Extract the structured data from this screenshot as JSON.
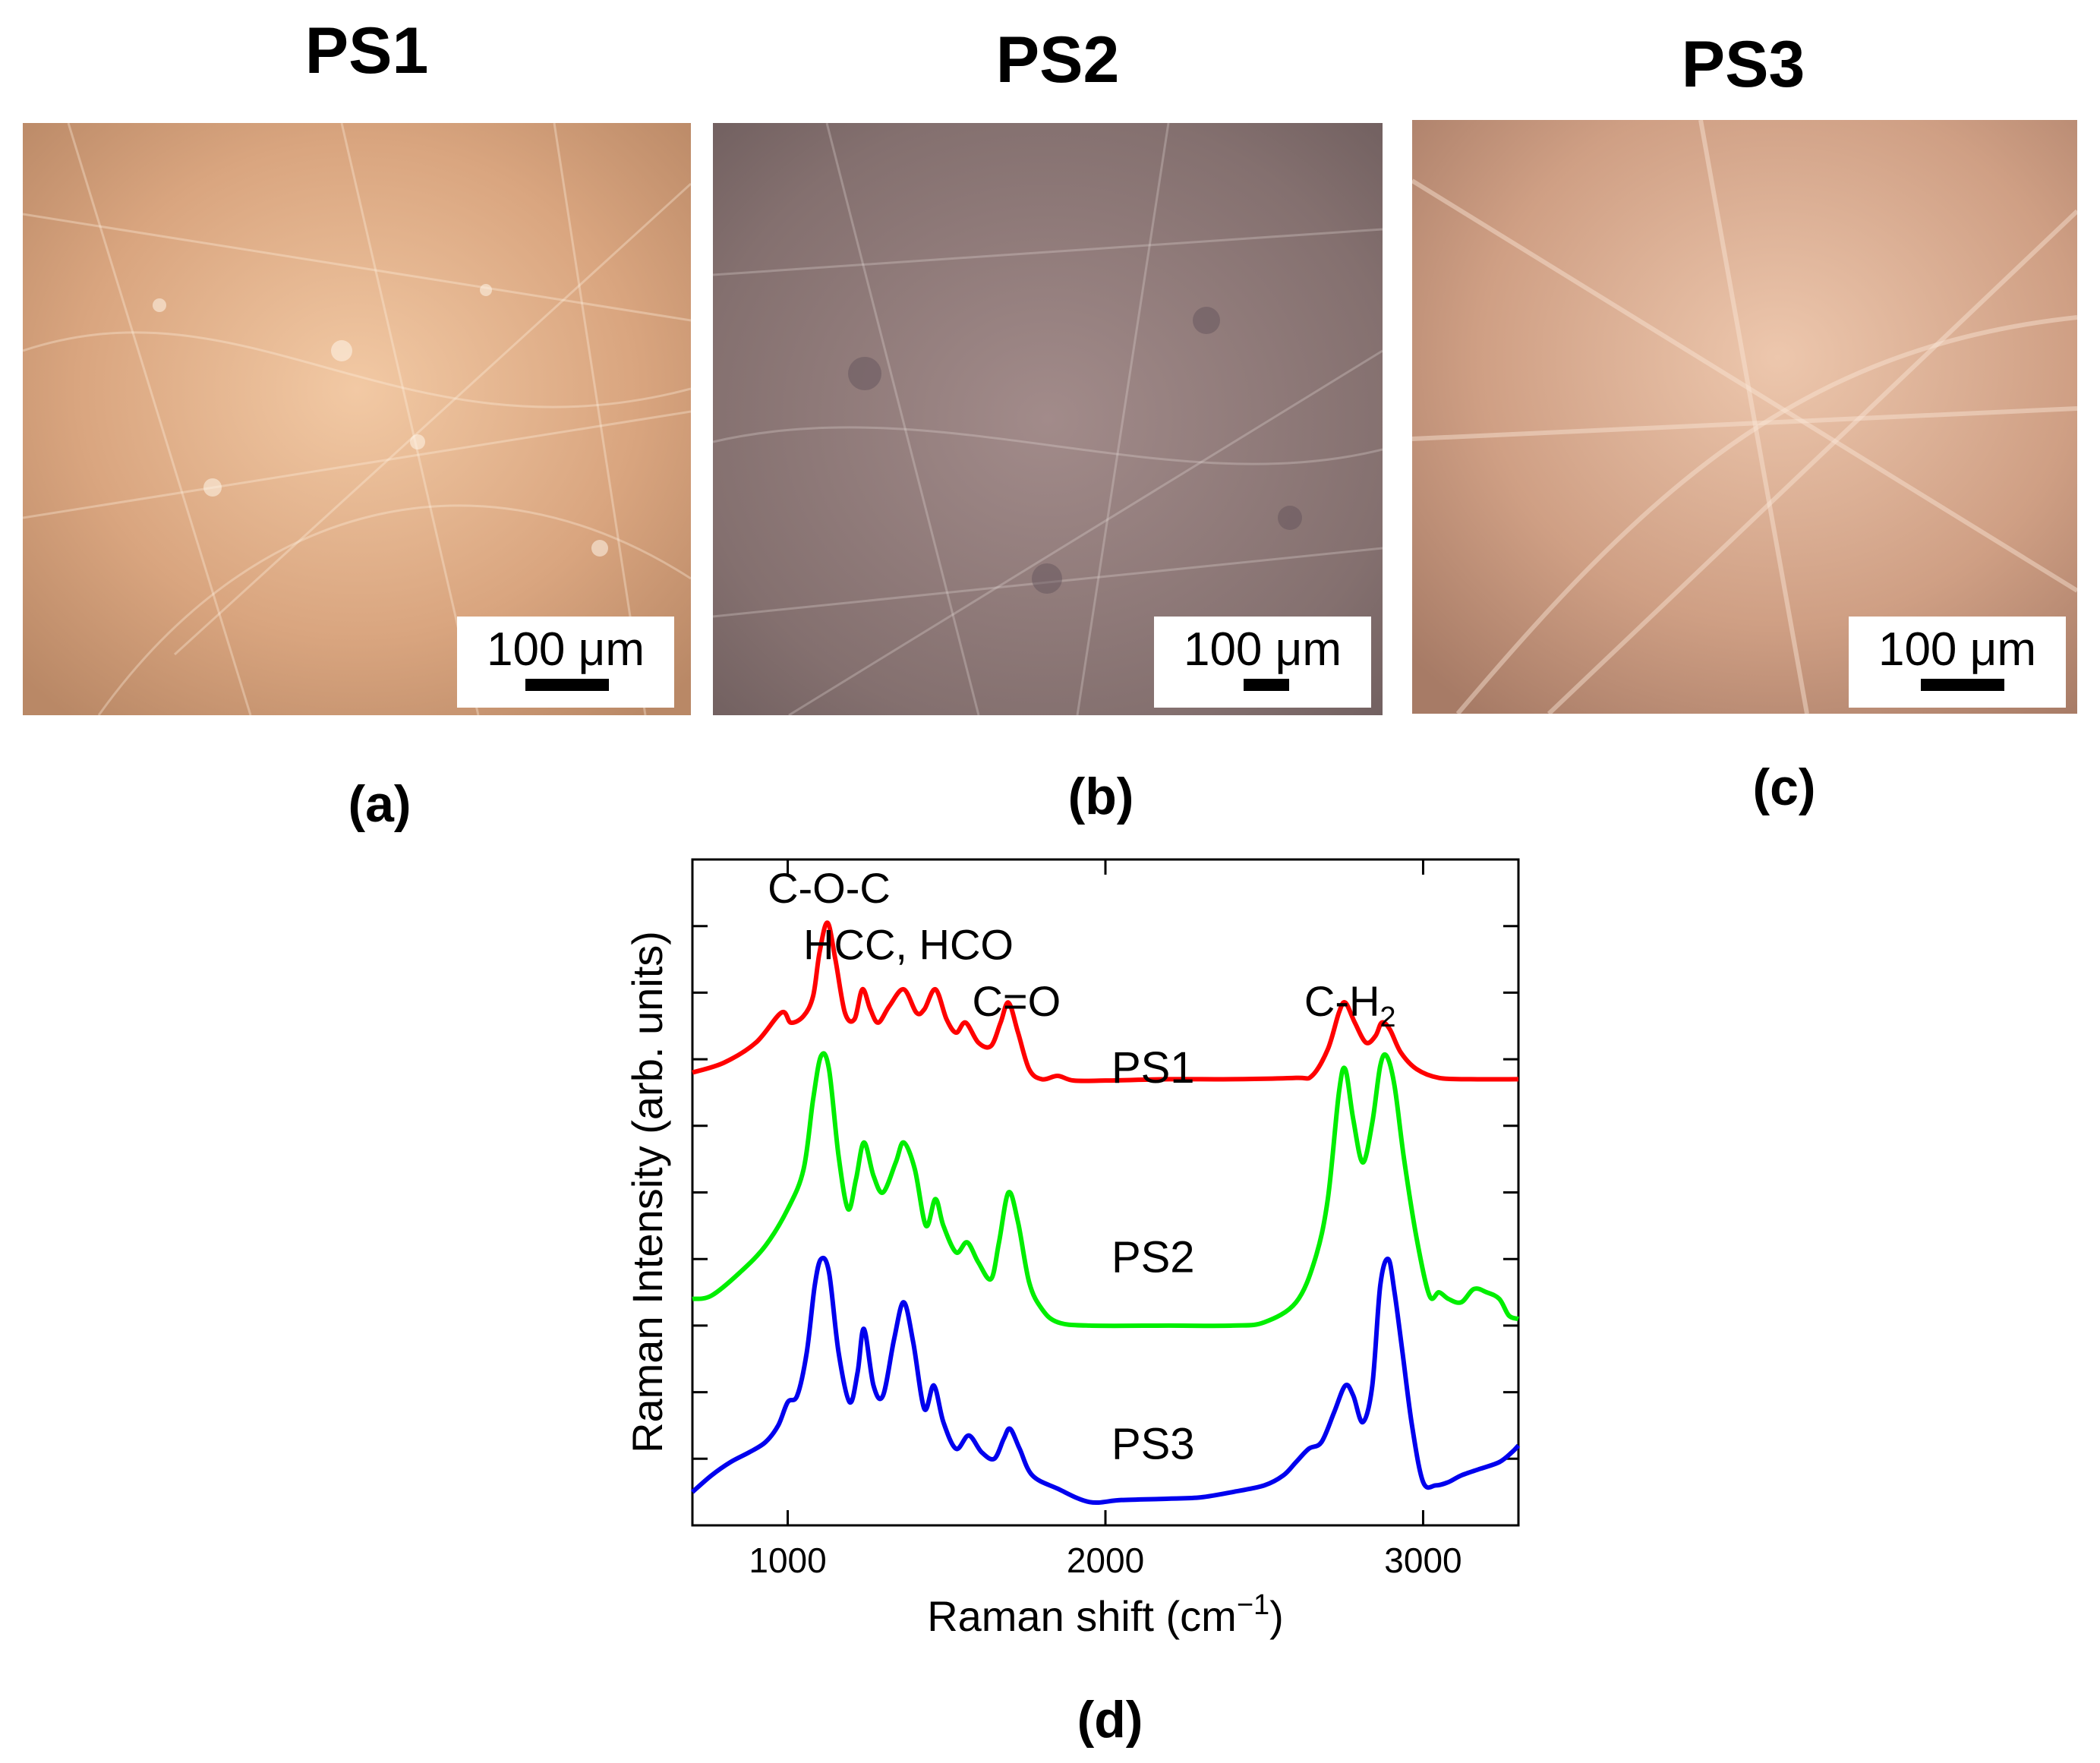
{
  "panels": [
    {
      "title": "PS1",
      "scale": "100 μm",
      "label": "(a)",
      "tone": "#d7a47e"
    },
    {
      "title": "PS2",
      "scale": "100 μm",
      "label": "(b)",
      "tone": "#8a7578"
    },
    {
      "title": "PS3",
      "scale": "100 μm",
      "label": "(c)",
      "tone": "#c99a80"
    }
  ],
  "chart_data": {
    "type": "line",
    "label": "(d)",
    "xlabel": "Raman shift (cm",
    "xlabel_sup": "−1",
    "xlabel_end": ")",
    "ylabel": "Raman Intensity (arb. units)",
    "xlim": [
      700,
      3300
    ],
    "ylim": [
      0,
      10
    ],
    "xticks": [
      1000,
      2000,
      3000
    ],
    "xtick_labels": [
      "1000",
      "2000",
      "3000"
    ],
    "yticks": [
      1,
      2,
      3,
      4,
      5,
      6,
      7,
      8,
      9
    ],
    "annotations": [
      {
        "text": "C-O-C",
        "x": 1130,
        "y": 9.35
      },
      {
        "text": "HCC, HCO",
        "x": 1380,
        "y": 8.5
      },
      {
        "text": "C=O",
        "x": 1720,
        "y": 7.65
      },
      {
        "text": "C-H",
        "sub": "2",
        "x": 2770,
        "y": 7.65
      }
    ],
    "series": [
      {
        "name": "PS1",
        "color": "#ff0000",
        "label_x": 2150,
        "label_y": 6.65,
        "points": [
          [
            700,
            6.8
          ],
          [
            800,
            6.95
          ],
          [
            900,
            7.25
          ],
          [
            980,
            7.7
          ],
          [
            1010,
            7.55
          ],
          [
            1050,
            7.65
          ],
          [
            1080,
            7.95
          ],
          [
            1100,
            8.6
          ],
          [
            1125,
            9.05
          ],
          [
            1150,
            8.5
          ],
          [
            1180,
            7.7
          ],
          [
            1210,
            7.6
          ],
          [
            1235,
            8.05
          ],
          [
            1260,
            7.75
          ],
          [
            1285,
            7.55
          ],
          [
            1320,
            7.8
          ],
          [
            1365,
            8.05
          ],
          [
            1405,
            7.7
          ],
          [
            1430,
            7.75
          ],
          [
            1465,
            8.05
          ],
          [
            1500,
            7.6
          ],
          [
            1530,
            7.4
          ],
          [
            1560,
            7.55
          ],
          [
            1600,
            7.25
          ],
          [
            1640,
            7.2
          ],
          [
            1670,
            7.55
          ],
          [
            1695,
            7.85
          ],
          [
            1725,
            7.4
          ],
          [
            1760,
            6.85
          ],
          [
            1800,
            6.7
          ],
          [
            1850,
            6.75
          ],
          [
            1900,
            6.68
          ],
          [
            2000,
            6.68
          ],
          [
            2200,
            6.7
          ],
          [
            2400,
            6.7
          ],
          [
            2600,
            6.72
          ],
          [
            2650,
            6.75
          ],
          [
            2700,
            7.15
          ],
          [
            2735,
            7.7
          ],
          [
            2755,
            7.85
          ],
          [
            2785,
            7.55
          ],
          [
            2820,
            7.25
          ],
          [
            2850,
            7.35
          ],
          [
            2870,
            7.55
          ],
          [
            2895,
            7.45
          ],
          [
            2930,
            7.1
          ],
          [
            2980,
            6.85
          ],
          [
            3050,
            6.72
          ],
          [
            3150,
            6.7
          ],
          [
            3300,
            6.7
          ]
        ]
      },
      {
        "name": "PS2",
        "color": "#00ee00",
        "label_x": 2150,
        "label_y": 3.8,
        "points": [
          [
            700,
            3.4
          ],
          [
            760,
            3.45
          ],
          [
            850,
            3.8
          ],
          [
            930,
            4.2
          ],
          [
            1000,
            4.75
          ],
          [
            1050,
            5.35
          ],
          [
            1080,
            6.4
          ],
          [
            1105,
            7.05
          ],
          [
            1130,
            6.85
          ],
          [
            1160,
            5.55
          ],
          [
            1190,
            4.75
          ],
          [
            1215,
            5.2
          ],
          [
            1240,
            5.75
          ],
          [
            1270,
            5.25
          ],
          [
            1300,
            5.0
          ],
          [
            1340,
            5.45
          ],
          [
            1365,
            5.75
          ],
          [
            1400,
            5.35
          ],
          [
            1435,
            4.5
          ],
          [
            1465,
            4.9
          ],
          [
            1490,
            4.5
          ],
          [
            1530,
            4.1
          ],
          [
            1565,
            4.25
          ],
          [
            1600,
            3.95
          ],
          [
            1640,
            3.7
          ],
          [
            1665,
            4.25
          ],
          [
            1695,
            5.0
          ],
          [
            1725,
            4.55
          ],
          [
            1760,
            3.65
          ],
          [
            1800,
            3.25
          ],
          [
            1850,
            3.05
          ],
          [
            1950,
            3.0
          ],
          [
            2200,
            3.0
          ],
          [
            2400,
            3.0
          ],
          [
            2500,
            3.05
          ],
          [
            2600,
            3.35
          ],
          [
            2660,
            4.0
          ],
          [
            2700,
            4.9
          ],
          [
            2735,
            6.5
          ],
          [
            2755,
            6.85
          ],
          [
            2780,
            6.1
          ],
          [
            2810,
            5.45
          ],
          [
            2840,
            6.05
          ],
          [
            2865,
            6.9
          ],
          [
            2885,
            7.05
          ],
          [
            2910,
            6.6
          ],
          [
            2940,
            5.5
          ],
          [
            2980,
            4.3
          ],
          [
            3020,
            3.45
          ],
          [
            3050,
            3.5
          ],
          [
            3080,
            3.4
          ],
          [
            3120,
            3.35
          ],
          [
            3160,
            3.55
          ],
          [
            3200,
            3.5
          ],
          [
            3240,
            3.4
          ],
          [
            3270,
            3.15
          ],
          [
            3300,
            3.1
          ]
        ]
      },
      {
        "name": "PS3",
        "color": "#0000ee",
        "label_x": 2150,
        "label_y": 1.0,
        "points": [
          [
            700,
            0.5
          ],
          [
            760,
            0.75
          ],
          [
            820,
            0.95
          ],
          [
            880,
            1.1
          ],
          [
            930,
            1.25
          ],
          [
            970,
            1.5
          ],
          [
            1000,
            1.85
          ],
          [
            1030,
            1.95
          ],
          [
            1060,
            2.6
          ],
          [
            1085,
            3.6
          ],
          [
            1105,
            4.0
          ],
          [
            1130,
            3.8
          ],
          [
            1160,
            2.6
          ],
          [
            1195,
            1.85
          ],
          [
            1220,
            2.3
          ],
          [
            1240,
            2.95
          ],
          [
            1270,
            2.1
          ],
          [
            1300,
            1.95
          ],
          [
            1335,
            2.8
          ],
          [
            1365,
            3.35
          ],
          [
            1395,
            2.75
          ],
          [
            1430,
            1.75
          ],
          [
            1460,
            2.1
          ],
          [
            1490,
            1.55
          ],
          [
            1530,
            1.15
          ],
          [
            1570,
            1.35
          ],
          [
            1610,
            1.1
          ],
          [
            1650,
            1.0
          ],
          [
            1680,
            1.3
          ],
          [
            1700,
            1.45
          ],
          [
            1730,
            1.15
          ],
          [
            1770,
            0.75
          ],
          [
            1850,
            0.55
          ],
          [
            1950,
            0.35
          ],
          [
            2050,
            0.38
          ],
          [
            2200,
            0.4
          ],
          [
            2300,
            0.42
          ],
          [
            2400,
            0.5
          ],
          [
            2500,
            0.6
          ],
          [
            2560,
            0.75
          ],
          [
            2600,
            0.95
          ],
          [
            2640,
            1.15
          ],
          [
            2680,
            1.25
          ],
          [
            2720,
            1.7
          ],
          [
            2755,
            2.1
          ],
          [
            2780,
            1.95
          ],
          [
            2810,
            1.55
          ],
          [
            2840,
            2.1
          ],
          [
            2865,
            3.6
          ],
          [
            2890,
            4.0
          ],
          [
            2910,
            3.5
          ],
          [
            2935,
            2.6
          ],
          [
            2965,
            1.5
          ],
          [
            3000,
            0.65
          ],
          [
            3040,
            0.6
          ],
          [
            3080,
            0.65
          ],
          [
            3120,
            0.75
          ],
          [
            3180,
            0.85
          ],
          [
            3240,
            0.95
          ],
          [
            3280,
            1.1
          ],
          [
            3300,
            1.2
          ]
        ]
      }
    ]
  }
}
